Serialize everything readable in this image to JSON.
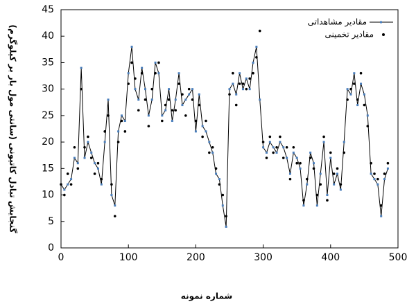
{
  "chart_data": {
    "type": "scatter-line",
    "x_label": "شماره نمونه",
    "y_label": "گنجایش تبادل کاتیونی (سانتی مول بار بر کیلوگرم)",
    "x": [
      0,
      5,
      10,
      15,
      20,
      25,
      30,
      35,
      40,
      45,
      50,
      55,
      60,
      65,
      70,
      75,
      80,
      85,
      90,
      95,
      100,
      105,
      110,
      115,
      120,
      125,
      130,
      135,
      140,
      145,
      150,
      155,
      160,
      165,
      170,
      175,
      180,
      185,
      190,
      195,
      200,
      205,
      210,
      215,
      220,
      225,
      230,
      235,
      240,
      245,
      250,
      255,
      260,
      265,
      270,
      275,
      280,
      285,
      290,
      295,
      300,
      305,
      310,
      315,
      320,
      325,
      330,
      335,
      340,
      345,
      350,
      355,
      360,
      365,
      370,
      375,
      380,
      385,
      390,
      395,
      400,
      405,
      410,
      415,
      420,
      425,
      430,
      435,
      440,
      445,
      450,
      455,
      460,
      465,
      470,
      475,
      480,
      485
    ],
    "series": [
      {
        "name": "مقادیر مشاهداتی",
        "color": "#4a7ebb",
        "line_color": "#000000",
        "values": [
          12,
          11,
          12,
          13,
          17,
          16,
          34,
          17,
          20,
          18,
          16,
          15,
          12,
          20,
          28,
          10,
          8,
          22,
          25,
          24,
          33,
          38,
          30,
          28,
          34,
          30,
          25,
          28,
          35,
          33,
          25,
          26,
          30,
          24,
          28,
          33,
          27,
          28,
          29,
          30,
          22,
          29,
          23,
          22,
          20,
          18,
          14,
          13,
          8,
          4,
          30,
          31,
          29,
          33,
          30,
          32,
          30,
          35,
          38,
          28,
          19,
          18,
          20,
          19,
          18,
          20,
          19,
          17,
          14,
          18,
          17,
          15,
          8,
          12,
          18,
          16,
          8,
          14,
          20,
          10,
          17,
          12,
          14,
          11,
          20,
          30,
          29,
          33,
          27,
          31,
          29,
          25,
          14,
          13,
          12,
          6,
          13,
          15
        ]
      },
      {
        "name": "مقادیر تخمینی",
        "color": "#000000",
        "values": [
          12,
          10,
          14,
          12,
          19,
          15,
          30,
          19,
          21,
          17,
          14,
          16,
          13,
          22,
          25,
          12,
          6,
          20,
          24,
          22,
          31,
          35,
          32,
          26,
          33,
          28,
          23,
          30,
          33,
          35,
          24,
          27,
          28,
          26,
          26,
          31,
          29,
          25,
          30,
          28,
          24,
          27,
          21,
          24,
          18,
          19,
          15,
          12,
          10,
          6,
          29,
          33,
          27,
          31,
          31,
          30,
          32,
          33,
          36,
          41,
          20,
          17,
          21,
          18,
          19,
          21,
          17,
          19,
          13,
          19,
          16,
          16,
          9,
          13,
          17,
          15,
          10,
          12,
          21,
          9,
          18,
          14,
          15,
          12,
          18,
          28,
          30,
          31,
          28,
          33,
          27,
          23,
          16,
          14,
          13,
          8,
          14,
          16
        ]
      }
    ],
    "xlim": [
      0,
      500
    ],
    "xticks": [
      0,
      100,
      200,
      300,
      400,
      500
    ],
    "ylim": [
      0,
      45
    ],
    "yticks": [
      0,
      5,
      10,
      15,
      20,
      25,
      30,
      35,
      40,
      45
    ],
    "legend": "top-right",
    "grid": false
  }
}
